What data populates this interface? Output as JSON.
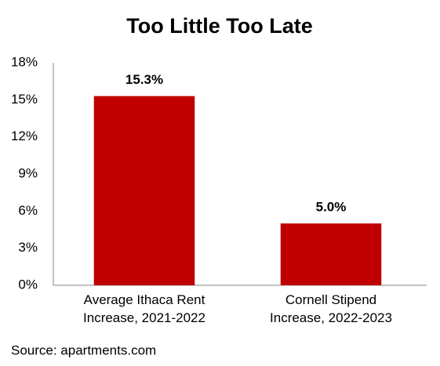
{
  "chart_data": {
    "type": "bar",
    "title": "Too Little Too Late",
    "categories": [
      "Average Ithaca Rent\nIncrease, 2021-2022",
      "Cornell Stipend\nIncrease, 2022-2023"
    ],
    "values": [
      15.3,
      5.0
    ],
    "value_labels": [
      "15.3%",
      "5.0%"
    ],
    "color": "#c00000",
    "ylim": [
      0,
      18
    ],
    "yticks": [
      {
        "value": 0,
        "label": "0%"
      },
      {
        "value": 3,
        "label": "3%"
      },
      {
        "value": 6,
        "label": "6%"
      },
      {
        "value": 9,
        "label": "9%"
      },
      {
        "value": 12,
        "label": "12%"
      },
      {
        "value": 15,
        "label": "15%"
      },
      {
        "value": 18,
        "label": "18%"
      }
    ],
    "grid": false,
    "source": "Source: apartments.com"
  }
}
